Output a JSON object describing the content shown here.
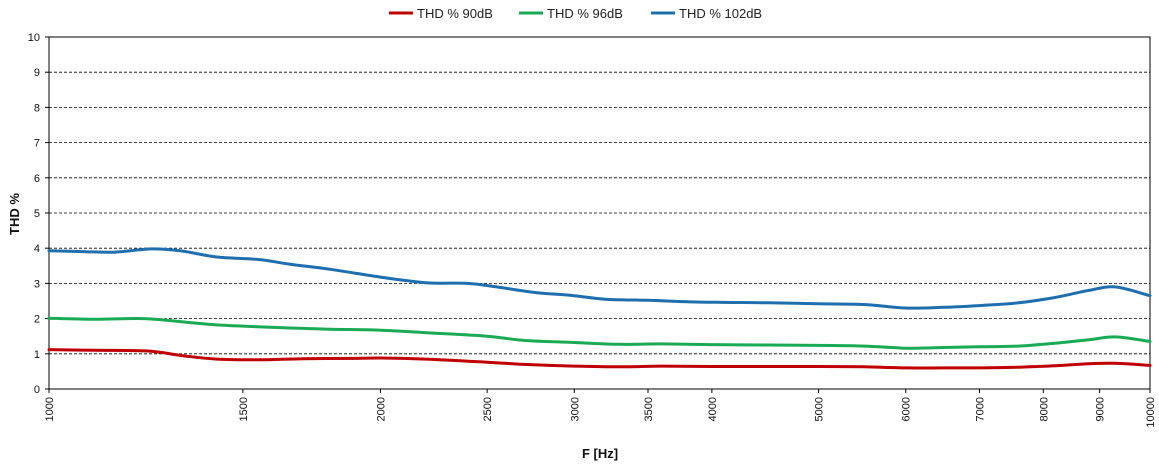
{
  "chart_data": {
    "type": "line",
    "xscale": "log",
    "xlabel": "F [Hz]",
    "ylabel": "THD %",
    "xlim": [
      1000,
      10000
    ],
    "ylim": [
      0,
      10
    ],
    "grid": true,
    "legend_position": "top",
    "yticks": [
      "0",
      "1",
      "2",
      "3",
      "4",
      "5",
      "6",
      "7",
      "8",
      "9",
      "10"
    ],
    "xticks": [
      {
        "value": 1000,
        "label": "1000"
      },
      {
        "value": 1500,
        "label": "1500"
      },
      {
        "value": 2000,
        "label": "2000"
      },
      {
        "value": 2500,
        "label": "2500"
      },
      {
        "value": 3000,
        "label": "3000"
      },
      {
        "value": 3500,
        "label": "3500"
      },
      {
        "value": 4000,
        "label": "4000"
      },
      {
        "value": 5000,
        "label": "5000"
      },
      {
        "value": 6000,
        "label": "6000"
      },
      {
        "value": 7000,
        "label": "7000"
      },
      {
        "value": 8000,
        "label": "8000"
      },
      {
        "value": 9000,
        "label": "9000"
      },
      {
        "value": 10000,
        "label": "10000"
      }
    ],
    "series": [
      {
        "name": "THD % 90dB",
        "color": "#c00000",
        "points": [
          [
            1000,
            1.12
          ],
          [
            1100,
            1.1
          ],
          [
            1230,
            1.08
          ],
          [
            1320,
            0.95
          ],
          [
            1420,
            0.85
          ],
          [
            1550,
            0.83
          ],
          [
            1700,
            0.86
          ],
          [
            1900,
            0.87
          ],
          [
            2000,
            0.88
          ],
          [
            2200,
            0.85
          ],
          [
            2500,
            0.76
          ],
          [
            2700,
            0.7
          ],
          [
            3000,
            0.65
          ],
          [
            3300,
            0.63
          ],
          [
            3600,
            0.65
          ],
          [
            4000,
            0.64
          ],
          [
            4500,
            0.64
          ],
          [
            5000,
            0.64
          ],
          [
            5500,
            0.63
          ],
          [
            6000,
            0.6
          ],
          [
            6500,
            0.6
          ],
          [
            7000,
            0.6
          ],
          [
            7600,
            0.62
          ],
          [
            8200,
            0.66
          ],
          [
            8800,
            0.72
          ],
          [
            9300,
            0.73
          ],
          [
            10000,
            0.67
          ]
        ]
      },
      {
        "name": "THD % 96dB",
        "color": "#1aaa55",
        "points": [
          [
            1000,
            2.01
          ],
          [
            1100,
            1.98
          ],
          [
            1220,
            2.0
          ],
          [
            1330,
            1.9
          ],
          [
            1420,
            1.82
          ],
          [
            1600,
            1.75
          ],
          [
            1800,
            1.7
          ],
          [
            2000,
            1.67
          ],
          [
            2200,
            1.6
          ],
          [
            2500,
            1.5
          ],
          [
            2700,
            1.38
          ],
          [
            3000,
            1.32
          ],
          [
            3300,
            1.27
          ],
          [
            3600,
            1.28
          ],
          [
            4000,
            1.26
          ],
          [
            4500,
            1.25
          ],
          [
            5000,
            1.24
          ],
          [
            5500,
            1.22
          ],
          [
            6000,
            1.16
          ],
          [
            6500,
            1.18
          ],
          [
            7000,
            1.2
          ],
          [
            7600,
            1.22
          ],
          [
            8200,
            1.3
          ],
          [
            8800,
            1.4
          ],
          [
            9300,
            1.48
          ],
          [
            10000,
            1.35
          ]
        ]
      },
      {
        "name": "THD % 102dB",
        "color": "#1f6fae",
        "points": [
          [
            1000,
            3.93
          ],
          [
            1080,
            3.9
          ],
          [
            1150,
            3.89
          ],
          [
            1240,
            3.98
          ],
          [
            1320,
            3.92
          ],
          [
            1420,
            3.75
          ],
          [
            1550,
            3.68
          ],
          [
            1650,
            3.55
          ],
          [
            1800,
            3.4
          ],
          [
            2000,
            3.18
          ],
          [
            2200,
            3.02
          ],
          [
            2400,
            3.0
          ],
          [
            2550,
            2.9
          ],
          [
            2750,
            2.75
          ],
          [
            3000,
            2.65
          ],
          [
            3200,
            2.55
          ],
          [
            3500,
            2.52
          ],
          [
            3800,
            2.48
          ],
          [
            4100,
            2.46
          ],
          [
            4500,
            2.45
          ],
          [
            5000,
            2.42
          ],
          [
            5500,
            2.4
          ],
          [
            6000,
            2.3
          ],
          [
            6500,
            2.32
          ],
          [
            7000,
            2.37
          ],
          [
            7600,
            2.45
          ],
          [
            8200,
            2.6
          ],
          [
            8800,
            2.8
          ],
          [
            9300,
            2.9
          ],
          [
            10000,
            2.65
          ]
        ]
      }
    ]
  }
}
